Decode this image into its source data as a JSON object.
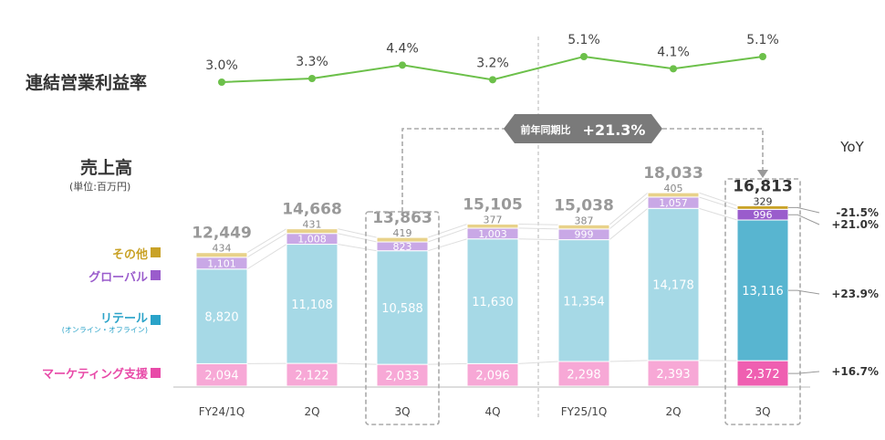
{
  "chart_data": {
    "type": "bar",
    "stacked": true,
    "categories": [
      "FY24/1Q",
      "2Q",
      "3Q",
      "4Q",
      "FY25/1Q",
      "2Q",
      "3Q"
    ],
    "series": [
      {
        "name": "マーケティング支援",
        "values": [
          2094,
          2122,
          2033,
          2096,
          2298,
          2393,
          2372
        ],
        "labels": [
          "2,094",
          "2,122",
          "2,033",
          "2,096",
          "2,298",
          "2,393",
          "2,372"
        ]
      },
      {
        "name": "リテール",
        "sub_label": "(オンライン・オフライン)",
        "values": [
          8820,
          11108,
          10588,
          11630,
          11354,
          14178,
          13116
        ],
        "labels": [
          "8,820",
          "11,108",
          "10,588",
          "11,630",
          "11,354",
          "14,178",
          "13,116"
        ]
      },
      {
        "name": "グローバル",
        "values": [
          1101,
          1008,
          823,
          1003,
          999,
          1057,
          996
        ],
        "labels": [
          "1,101",
          "1,008",
          "823",
          "1,003",
          "999",
          "1,057",
          "996"
        ]
      },
      {
        "name": "その他",
        "values": [
          434,
          431,
          419,
          377,
          387,
          405,
          329
        ],
        "labels": [
          "434",
          "431",
          "419",
          "377",
          "387",
          "405",
          "329"
        ]
      }
    ],
    "totals": [
      12449,
      14668,
      13863,
      15105,
      15038,
      18033,
      16813
    ],
    "total_labels": [
      "12,449",
      "14,668",
      "13,863",
      "15,105",
      "15,038",
      "18,033",
      "16,813"
    ],
    "margin_title": "連結営業利益率",
    "operating_margin": [
      3.0,
      3.3,
      4.4,
      3.2,
      5.1,
      4.1,
      5.1
    ],
    "margin_labels": [
      "3.0%",
      "3.3%",
      "4.4%",
      "3.2%",
      "5.1%",
      "4.1%",
      "5.1%"
    ],
    "sales_title": "売上高",
    "unit": "(単位:百万円)",
    "yoy_header": "YoY",
    "yoy": [
      {
        "segment": "その他",
        "label": "-21.5%"
      },
      {
        "segment": "グローバル",
        "label": "+21.0%"
      },
      {
        "segment": "リテール",
        "label": "+23.9%"
      },
      {
        "segment": "マーケティング支援",
        "label": "+16.7%"
      }
    ],
    "comparison": {
      "prefix": "前年同期比",
      "value": "+21.3%",
      "from": "3Q",
      "to": "3Q"
    }
  },
  "colors": {
    "marketing": "#f7a8d6",
    "marketing_hi": "#ef5fb1",
    "retail": "#a6d9e6",
    "retail_hi": "#58b5d0",
    "global": "#c9a8e6",
    "global_hi": "#9a5ccc",
    "other": "#e8d28a",
    "other_hi": "#c9a227",
    "line": "#6cc04a",
    "legend_marketing": "#e84aa8",
    "legend_retail": "#2aa3c9",
    "legend_global": "#9a5ccc",
    "legend_other": "#c9a227"
  }
}
